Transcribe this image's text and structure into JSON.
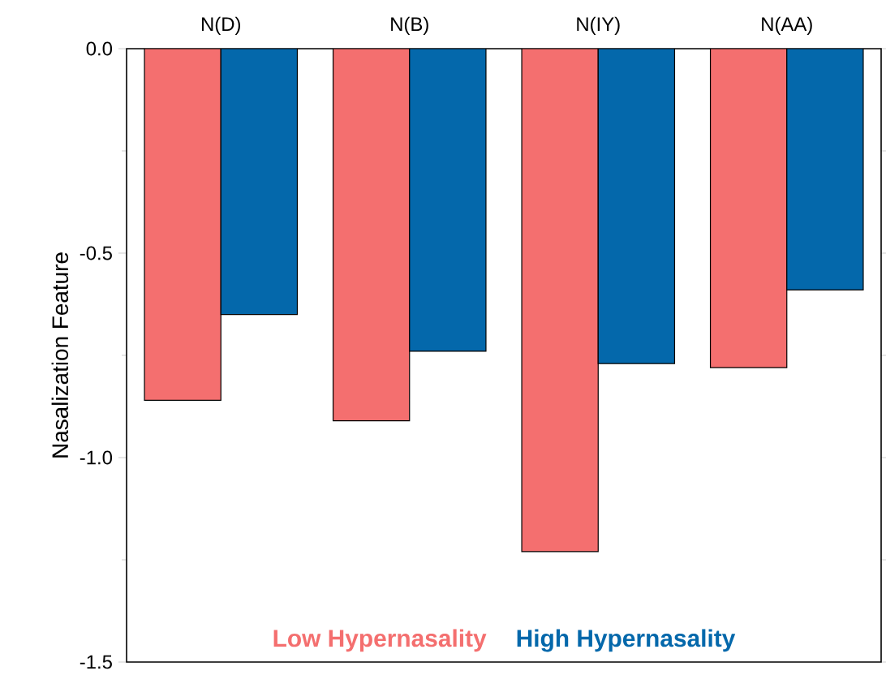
{
  "chart_data": {
    "type": "bar",
    "ylabel": "Nasalization Feature",
    "categories": [
      "N(D)",
      "N(B)",
      "N(IY)",
      "N(AA)"
    ],
    "series": [
      {
        "name": "Low Hypernasality",
        "color": "#f46f6f",
        "values": [
          -0.86,
          -0.91,
          -1.23,
          -0.78
        ]
      },
      {
        "name": "High Hypernasality",
        "color": "#0468ab",
        "values": [
          -0.65,
          -0.74,
          -0.77,
          -0.59
        ]
      }
    ],
    "ylim": [
      -1.5,
      0
    ],
    "yticks": [
      {
        "value": 0,
        "label": "0.0"
      },
      {
        "value": -0.25,
        "label": null
      },
      {
        "value": -0.5,
        "label": "-0.5"
      },
      {
        "value": -0.75,
        "label": null
      },
      {
        "value": -1.0,
        "label": "-1.0"
      },
      {
        "value": -1.25,
        "label": null
      },
      {
        "value": -1.5,
        "label": "-1.5"
      }
    ],
    "legend": "bottom"
  }
}
